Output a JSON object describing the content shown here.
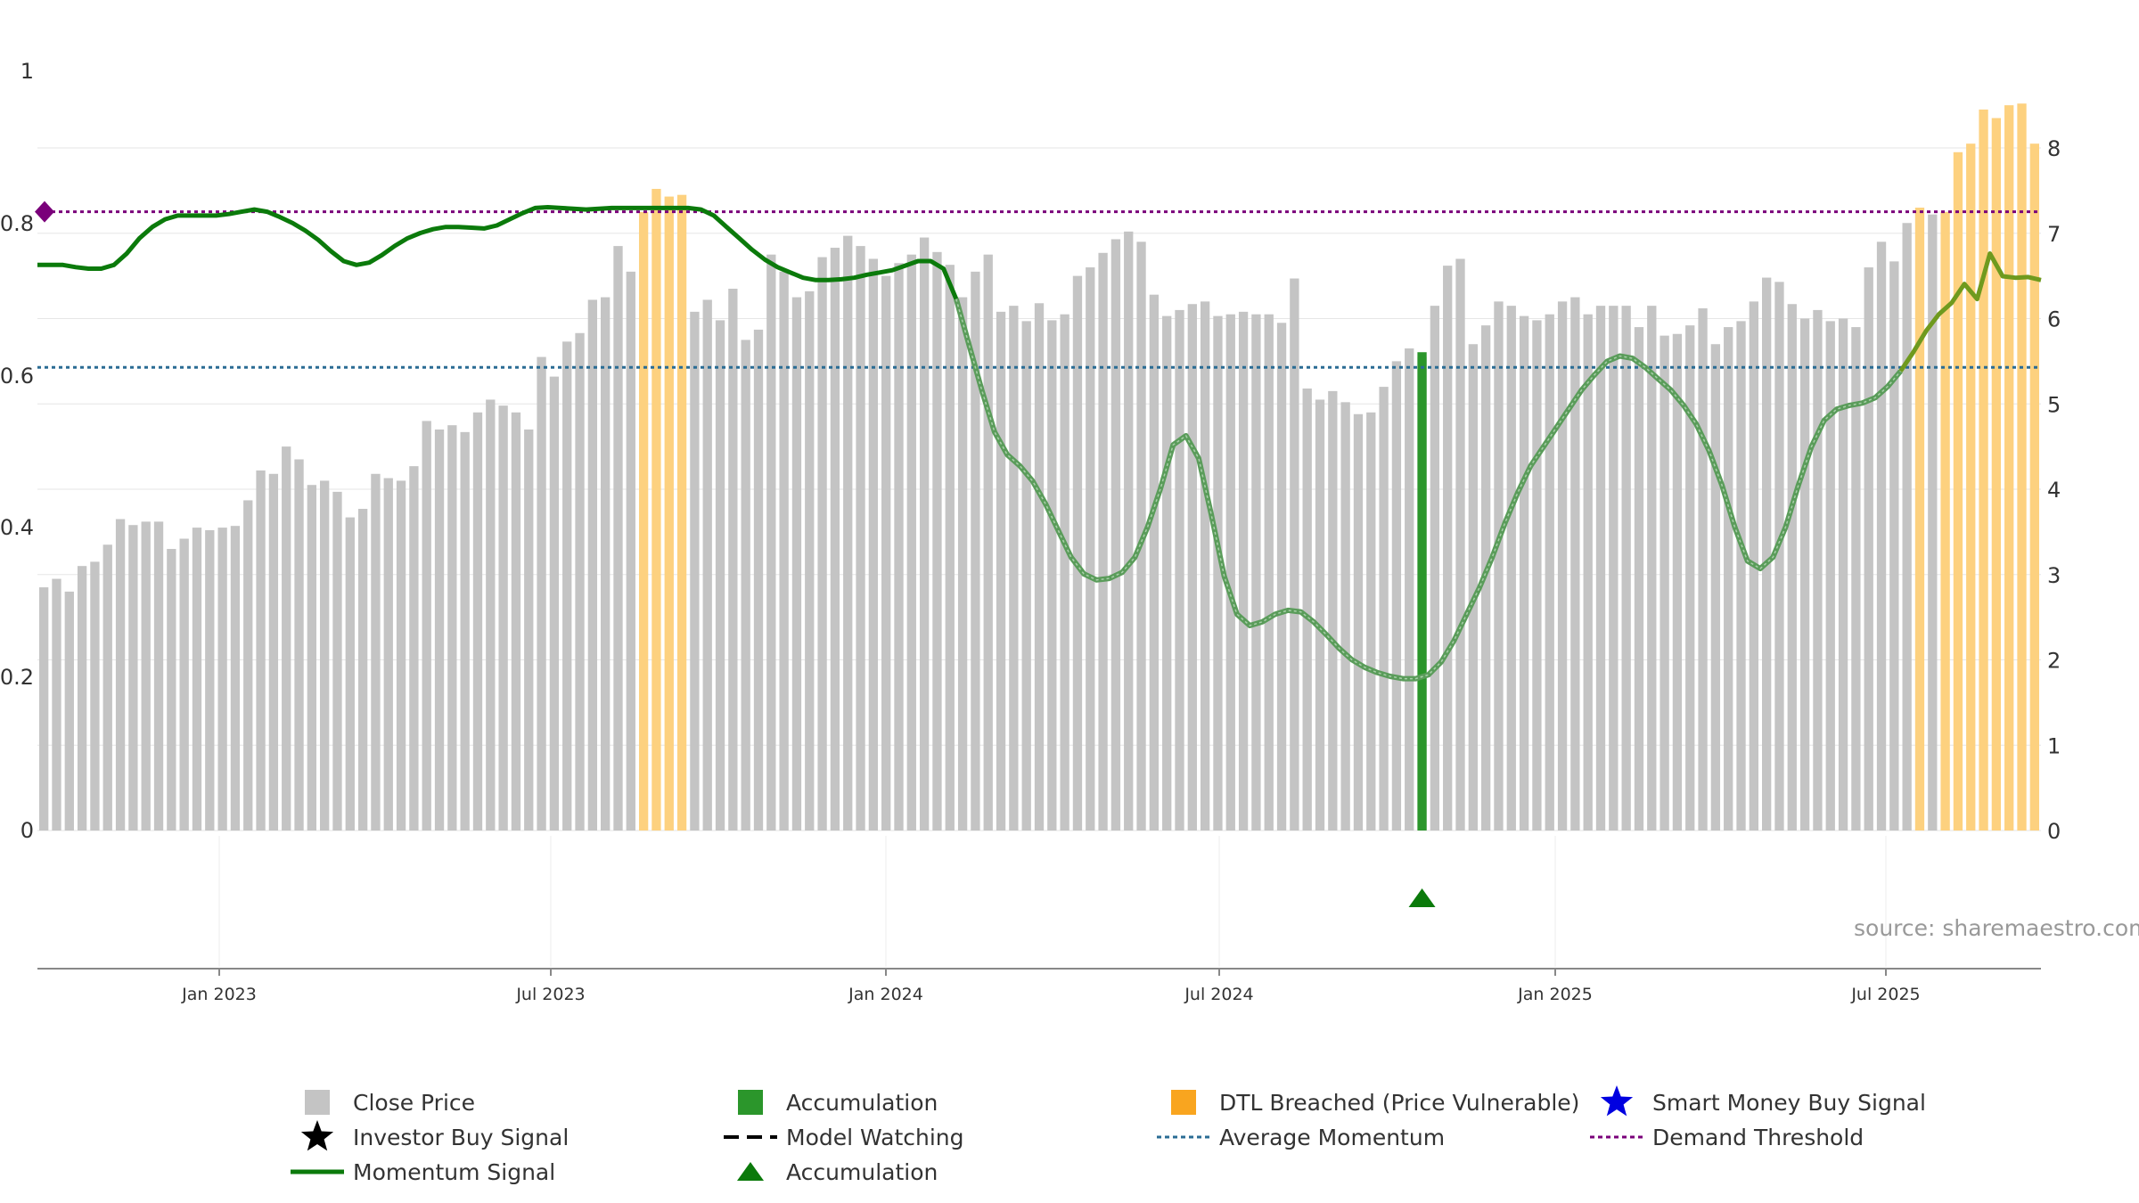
{
  "chart_data": {
    "type": "bar",
    "source": "source: sharemaestro.com",
    "colors": {
      "price": "#c4c4c4",
      "dtl": "#fdd17f",
      "accum": "#2b962b",
      "momentum": "#0b7a0b",
      "momentum_faded": "#5a9c5a",
      "avg_momentum": "#2a6c94",
      "demand": "#7a007a",
      "grid": "#e6e6e6"
    },
    "x_ticks": [
      "Jan 2023",
      "Jul 2023",
      "Jan 2024",
      "Jul 2024",
      "Jan 2025",
      "Jul 2025"
    ],
    "left_axis": {
      "ticks": [
        "0",
        "0.2",
        "0.4",
        "0.6",
        "0.8",
        "1"
      ],
      "range": [
        0,
        1
      ]
    },
    "right_axis": {
      "ticks": [
        "0",
        "1",
        "2",
        "3",
        "4",
        "5",
        "6",
        "7",
        "8"
      ],
      "range": [
        0,
        8
      ]
    },
    "price_bars": [
      2.85,
      2.95,
      2.8,
      3.1,
      3.15,
      3.35,
      3.65,
      3.58,
      3.62,
      3.62,
      3.3,
      3.42,
      3.55,
      3.52,
      3.55,
      3.57,
      3.87,
      4.22,
      4.18,
      4.5,
      4.35,
      4.05,
      4.1,
      3.97,
      3.67,
      3.77,
      4.18,
      4.13,
      4.1,
      4.27,
      4.8,
      4.7,
      4.75,
      4.67,
      4.9,
      5.05,
      4.98,
      4.9,
      4.7,
      5.55,
      5.32,
      5.73,
      5.83,
      6.22,
      6.25,
      6.85,
      6.55,
      7.25,
      7.52,
      7.43,
      7.45,
      6.08,
      6.22,
      5.98,
      6.35,
      5.75,
      5.87,
      6.75,
      6.55,
      6.25,
      6.32,
      6.72,
      6.83,
      6.97,
      6.85,
      6.7,
      6.5,
      6.65,
      6.75,
      6.95,
      6.78,
      6.63,
      6.25,
      6.55,
      6.75,
      6.08,
      6.15,
      5.97,
      6.18,
      5.98,
      6.05,
      6.5,
      6.6,
      6.77,
      6.93,
      7.02,
      6.9,
      6.28,
      6.03,
      6.1,
      6.17,
      6.2,
      6.03,
      6.05,
      6.08,
      6.05,
      6.05,
      5.95,
      6.47,
      5.18,
      5.05,
      5.15,
      5.02,
      4.88,
      4.9,
      5.2,
      5.5,
      5.65,
      5.55,
      6.15,
      6.62,
      6.7,
      5.7,
      5.92,
      6.2,
      6.15,
      6.03,
      5.98,
      6.05,
      6.2,
      6.25,
      6.05,
      6.15,
      6.15,
      6.15,
      5.9,
      6.15,
      5.8,
      5.82,
      5.92,
      6.12,
      5.7,
      5.9,
      5.97,
      6.2,
      6.48,
      6.43,
      6.17,
      6.0,
      6.1,
      5.97,
      6.0,
      5.9,
      6.6,
      6.9,
      6.67,
      7.12,
      7.3,
      7.22,
      7.25,
      7.95,
      8.05,
      8.45,
      8.35,
      8.5,
      8.52,
      8.05
    ],
    "dtl_breached_indices": [
      47,
      48,
      49,
      50,
      147,
      149,
      150,
      151,
      152,
      153,
      154,
      155,
      156
    ],
    "accumulation_bar_index": 108,
    "accumulation_bar_value": 0.63,
    "accumulation_marker_index": 108,
    "momentum_signal": [
      0.745,
      0.745,
      0.745,
      0.742,
      0.74,
      0.74,
      0.745,
      0.76,
      0.78,
      0.795,
      0.805,
      0.81,
      0.81,
      0.81,
      0.81,
      0.812,
      0.815,
      0.818,
      0.815,
      0.808,
      0.8,
      0.79,
      0.778,
      0.763,
      0.75,
      0.745,
      0.748,
      0.758,
      0.77,
      0.78,
      0.787,
      0.792,
      0.795,
      0.795,
      0.794,
      0.793,
      0.797,
      0.805,
      0.813,
      0.82,
      0.821,
      0.82,
      0.819,
      0.818,
      0.819,
      0.82,
      0.82,
      0.82,
      0.82,
      0.82,
      0.82,
      0.82,
      0.818,
      0.81,
      0.795,
      0.78,
      0.765,
      0.752,
      0.742,
      0.735,
      0.728,
      0.725,
      0.725,
      0.726,
      0.728,
      0.732,
      0.735,
      0.738,
      0.744,
      0.75,
      0.75,
      0.74,
      0.7,
      0.64,
      0.58,
      0.525,
      0.495,
      0.48,
      0.46,
      0.43,
      0.395,
      0.36,
      0.338,
      0.33,
      0.332,
      0.34,
      0.36,
      0.4,
      0.45,
      0.508,
      0.52,
      0.49,
      0.415,
      0.335,
      0.285,
      0.27,
      0.275,
      0.285,
      0.29,
      0.288,
      0.275,
      0.258,
      0.24,
      0.225,
      0.215,
      0.208,
      0.203,
      0.2,
      0.2,
      0.205,
      0.222,
      0.25,
      0.285,
      0.32,
      0.36,
      0.405,
      0.445,
      0.48,
      0.505,
      0.53,
      0.555,
      0.58,
      0.6,
      0.618,
      0.625,
      0.622,
      0.61,
      0.595,
      0.58,
      0.56,
      0.535,
      0.5,
      0.455,
      0.4,
      0.355,
      0.345,
      0.36,
      0.4,
      0.455,
      0.505,
      0.54,
      0.555,
      0.56,
      0.563,
      0.57,
      0.585,
      0.605,
      0.63,
      0.658,
      0.68,
      0.695,
      0.72,
      0.7,
      0.76,
      0.73,
      0.728,
      0.729,
      0.725
    ],
    "momentum_faded_from_index": 72,
    "momentum_right_from_index": 146,
    "average_momentum": 0.61,
    "demand_threshold": 0.815,
    "demand_marker_value": 0.815,
    "legend": [
      {
        "label": "Close Price",
        "symbol": "square",
        "color": "price"
      },
      {
        "label": "Accumulation",
        "symbol": "square",
        "color": "accum"
      },
      {
        "label": "DTL Breached (Price Vulnerable)",
        "symbol": "square",
        "color": "dtl_legend"
      },
      {
        "label": "Smart Money Buy Signal",
        "symbol": "star",
        "color": "blue"
      },
      {
        "label": "Investor Buy Signal",
        "symbol": "star",
        "color": "black"
      },
      {
        "label": "Model Watching",
        "symbol": "dash",
        "color": "black"
      },
      {
        "label": "Average Momentum",
        "symbol": "dot-line",
        "color": "avg_momentum"
      },
      {
        "label": "Demand Threshold",
        "symbol": "dot-line",
        "color": "demand"
      },
      {
        "label": "Momentum Signal",
        "symbol": "line",
        "color": "momentum"
      },
      {
        "label": "Accumulation",
        "symbol": "triangle",
        "color": "momentum"
      }
    ]
  }
}
